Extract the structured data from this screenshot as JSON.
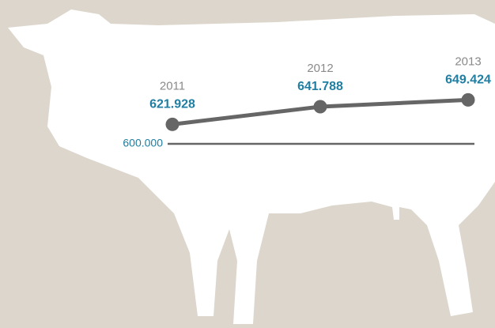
{
  "chart_data": {
    "type": "line",
    "categories": [
      "2011",
      "2012",
      "2013"
    ],
    "values": [
      621928,
      641788,
      649424
    ],
    "value_labels": [
      "621.928",
      "641.788",
      "649.424"
    ],
    "color": "#666666",
    "ylim": [
      600000,
      660000
    ],
    "yticks": [
      {
        "value": 600000,
        "label": "600.000"
      }
    ]
  }
}
